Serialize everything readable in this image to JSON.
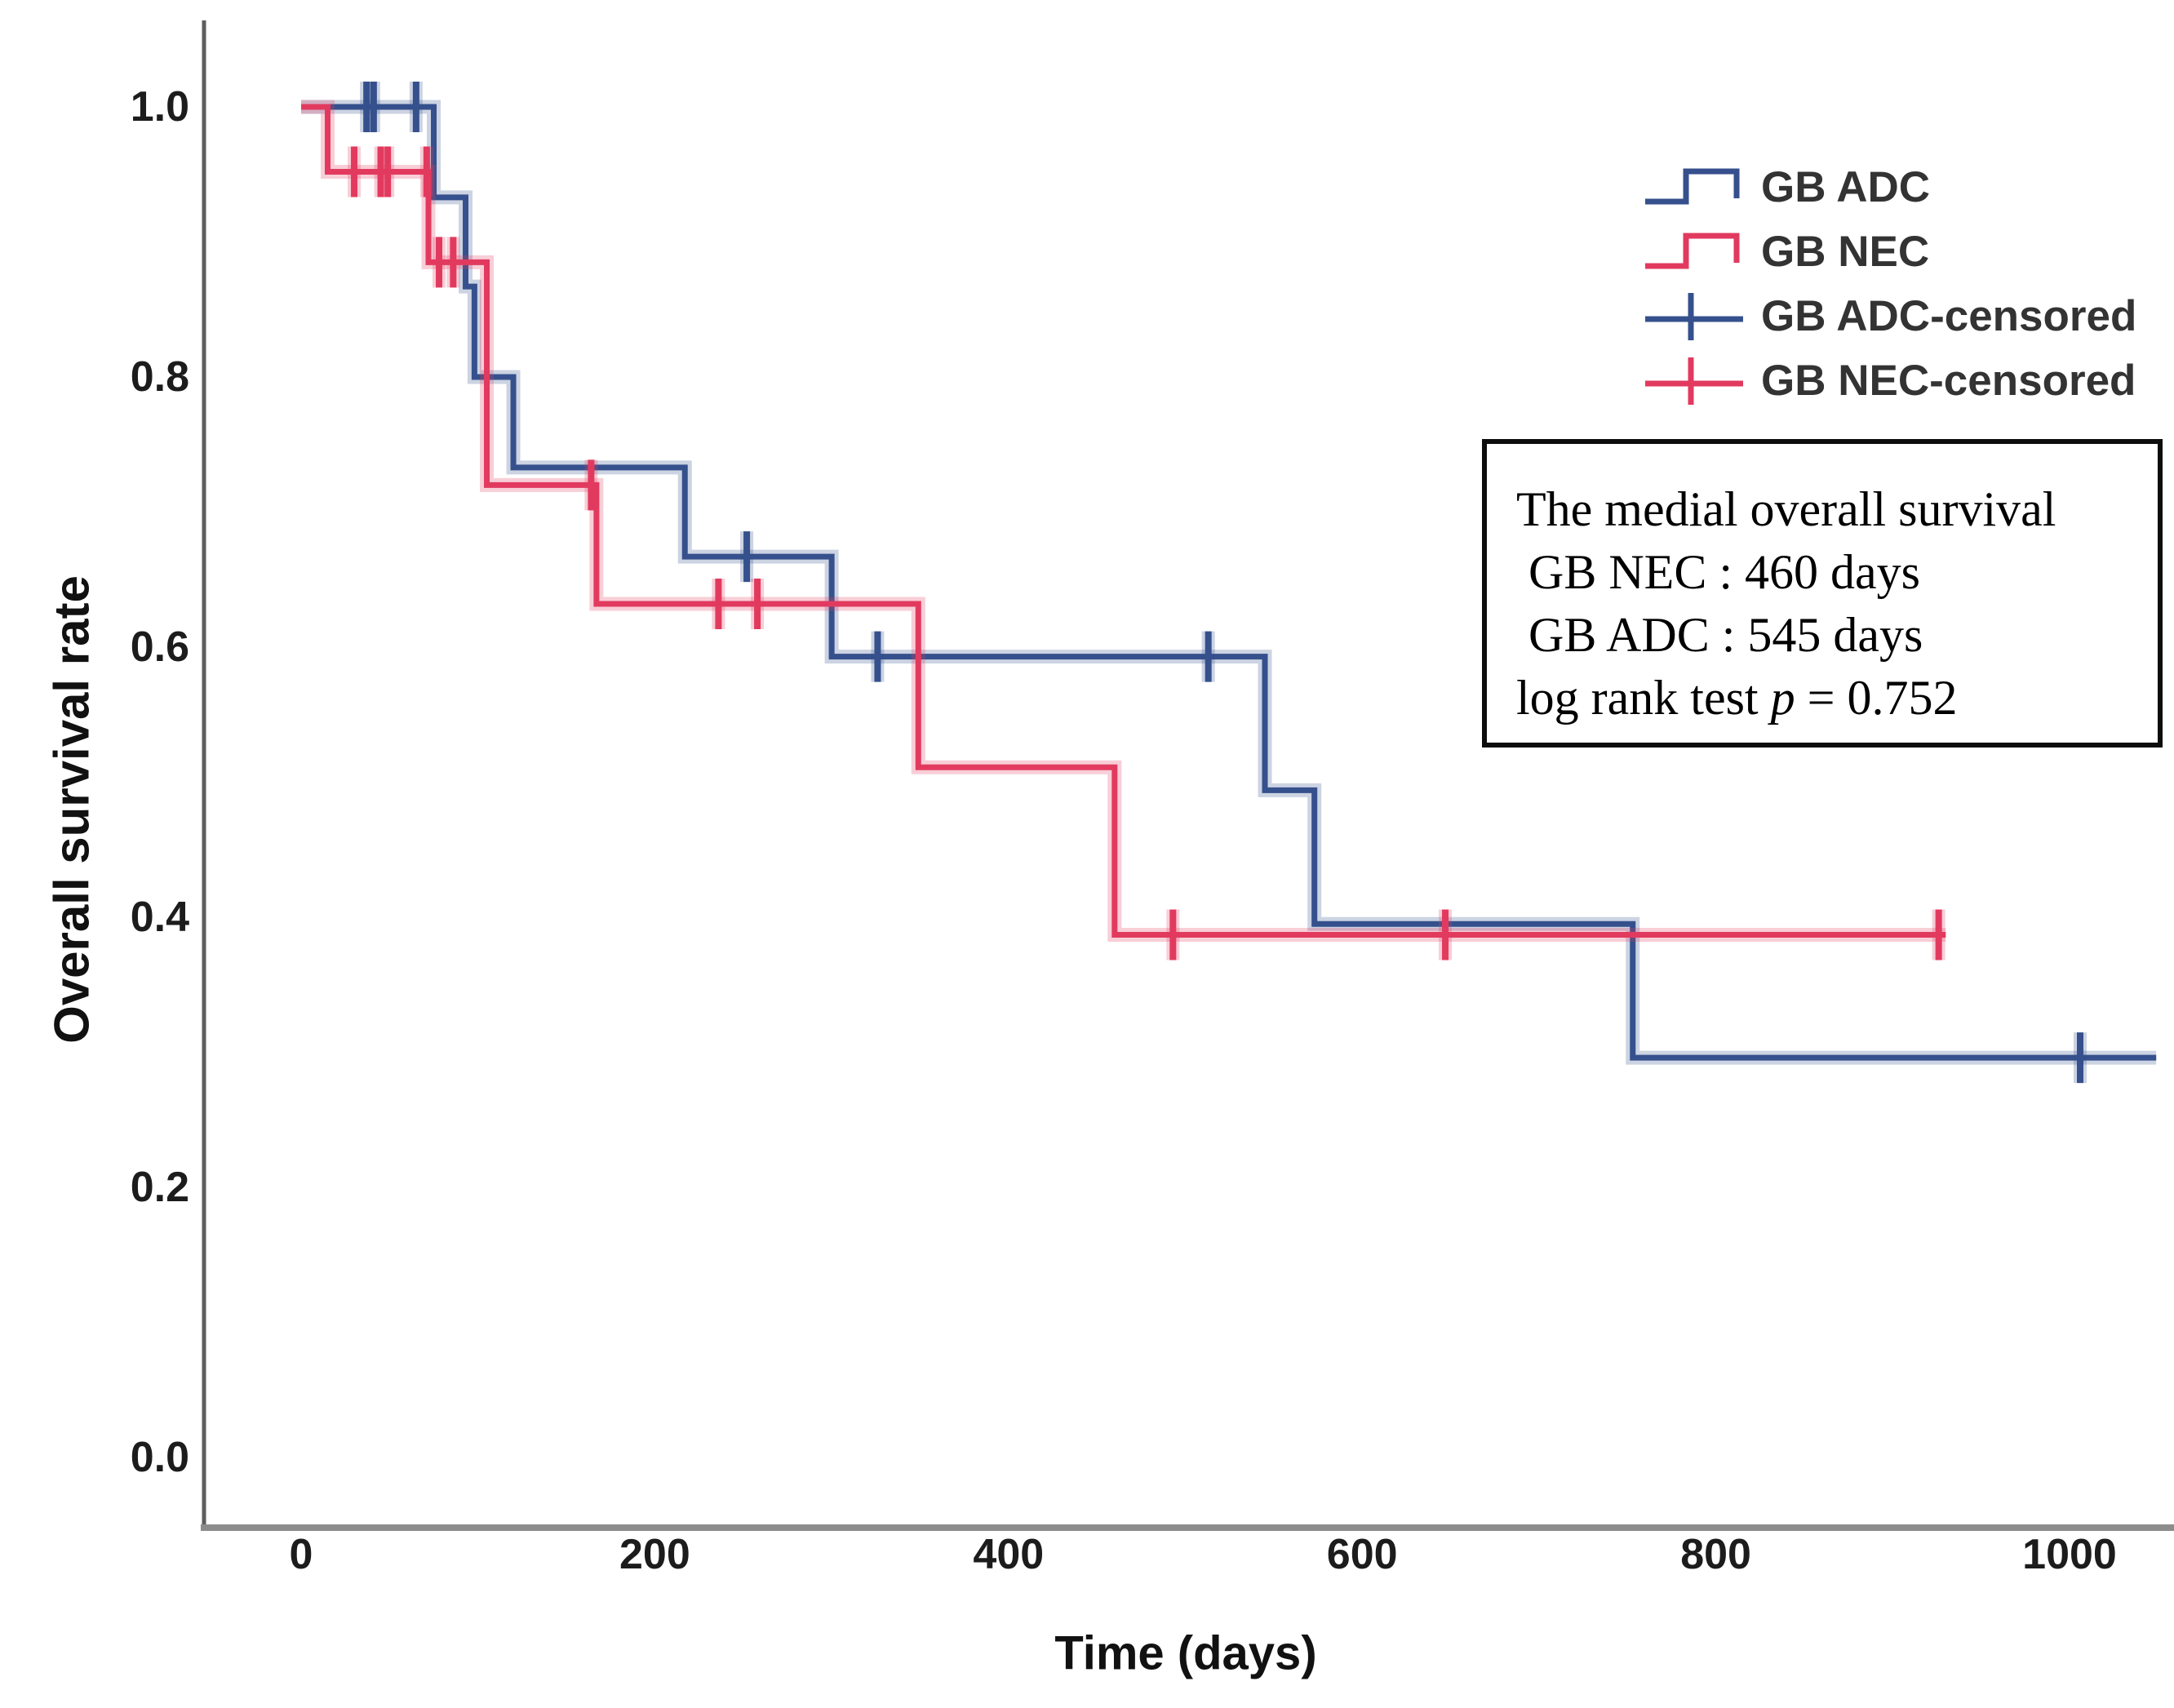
{
  "figure": {
    "y_axis_title": "Overall survival rate",
    "x_axis_title": "Time (days)"
  },
  "legend": {
    "items": [
      {
        "label": "GB ADC",
        "marker": "step",
        "color": "#35508C"
      },
      {
        "label": "GB NEC",
        "marker": "step",
        "color": "#E23A5F"
      },
      {
        "label": "GB ADC-censored",
        "marker": "plus",
        "color": "#35508C"
      },
      {
        "label": "GB NEC-censored",
        "marker": "plus",
        "color": "#E23A5F"
      }
    ]
  },
  "annotation_box": {
    "line1": "The medial overall survival",
    "line2": " GB NEC : 460 days",
    "line3": " GB ADC : 545 days",
    "line4_prefix": "log rank test ",
    "line4_p": "p",
    "line4_value": " = 0.752"
  },
  "chart_data": {
    "type": "line",
    "subtype": "kaplan-meier-step",
    "title": "",
    "xlabel": "Time (days)",
    "ylabel": "Overall survival rate",
    "xlim": [
      -55,
      1060
    ],
    "ylim": [
      -0.05,
      1.05
    ],
    "x_ticks": [
      0,
      200,
      400,
      600,
      800,
      1000
    ],
    "y_ticks": [
      0.0,
      0.2,
      0.4,
      0.6,
      0.8,
      1.0
    ],
    "grid": false,
    "legend_position": "top-right",
    "median_survival": {
      "GB NEC": 460,
      "GB ADC": 545
    },
    "log_rank_p": 0.752,
    "series": [
      {
        "name": "GB ADC",
        "color": "#35508C",
        "step": "post",
        "points": [
          [
            0,
            1.0
          ],
          [
            75,
            0.933
          ],
          [
            93,
            0.867
          ],
          [
            98,
            0.8
          ],
          [
            120,
            0.733
          ],
          [
            217,
            0.667
          ],
          [
            300,
            0.593
          ],
          [
            545,
            0.494
          ],
          [
            573,
            0.395
          ],
          [
            753,
            0.296
          ]
        ],
        "end_time": 1049,
        "censored": [
          [
            37,
            1.0
          ],
          [
            41,
            1.0
          ],
          [
            65,
            1.0
          ],
          [
            252,
            0.667
          ],
          [
            326,
            0.593
          ],
          [
            513,
            0.593
          ],
          [
            1006,
            0.296
          ]
        ]
      },
      {
        "name": "GB NEC",
        "color": "#E23A5F",
        "step": "post",
        "points": [
          [
            0,
            1.0
          ],
          [
            15,
            0.952
          ],
          [
            72,
            0.885
          ],
          [
            105,
            0.72
          ],
          [
            167,
            0.632
          ],
          [
            349,
            0.511
          ],
          [
            460,
            0.387
          ]
        ],
        "end_time": 930,
        "censored": [
          [
            30,
            0.952
          ],
          [
            45,
            0.952
          ],
          [
            49,
            0.952
          ],
          [
            71,
            0.952
          ],
          [
            78,
            0.885
          ],
          [
            86,
            0.885
          ],
          [
            164,
            0.72
          ],
          [
            236,
            0.632
          ],
          [
            258,
            0.632
          ],
          [
            493,
            0.387
          ],
          [
            647,
            0.387
          ],
          [
            926,
            0.387
          ]
        ]
      }
    ]
  }
}
